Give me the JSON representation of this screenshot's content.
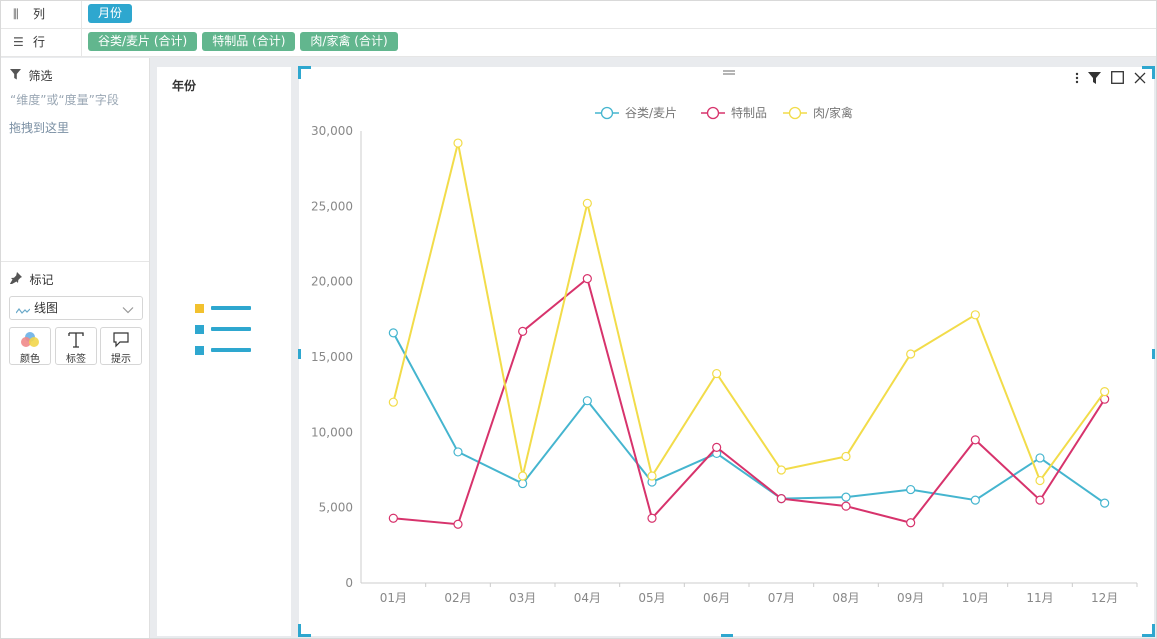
{
  "shelves": {
    "columns": {
      "label": "列",
      "icon": "columns-icon",
      "pills": [
        "月份"
      ]
    },
    "rows": {
      "label": "行",
      "icon": "rows-icon",
      "pills": [
        "谷类/麦片 (合计)",
        "特制品 (合计)",
        "肉/家禽 (合计)"
      ]
    }
  },
  "filter": {
    "title": "筛选",
    "hint_line1": "“维度”或“度量”字段",
    "hint_line2": "拖拽到这里"
  },
  "marks": {
    "title": "标记",
    "type_selected": "线图",
    "buttons": {
      "color": "颜色",
      "label": "标签",
      "tooltip": "提示"
    }
  },
  "legend_panel": {
    "title": "年份"
  },
  "colors": {
    "accent": "#2ea7cf",
    "green_pill": "#62b68e"
  },
  "chart_data": {
    "type": "line",
    "categories": [
      "01月",
      "02月",
      "03月",
      "04月",
      "05月",
      "06月",
      "07月",
      "08月",
      "09月",
      "10月",
      "11月",
      "12月"
    ],
    "y_ticks": [
      "0",
      "5,000",
      "10,000",
      "15,000",
      "20,000",
      "25,000",
      "30,000"
    ],
    "ylim": [
      0,
      30000
    ],
    "legend_position": "top-center",
    "grid": false,
    "series": [
      {
        "name": "谷类/麦片",
        "color": "#45b5cf",
        "values": [
          16600,
          8700,
          6600,
          12100,
          6700,
          8600,
          5600,
          5700,
          6200,
          5500,
          8300,
          5300
        ]
      },
      {
        "name": "特制品",
        "color": "#d7336c",
        "values": [
          4300,
          3900,
          16700,
          20200,
          4300,
          9000,
          5600,
          5100,
          4000,
          9500,
          5500,
          12200
        ]
      },
      {
        "name": "肉/家禽",
        "color": "#f2dc4a",
        "values": [
          12000,
          29200,
          7100,
          25200,
          7100,
          13900,
          7500,
          8400,
          15200,
          17800,
          6800,
          12700
        ]
      }
    ]
  }
}
